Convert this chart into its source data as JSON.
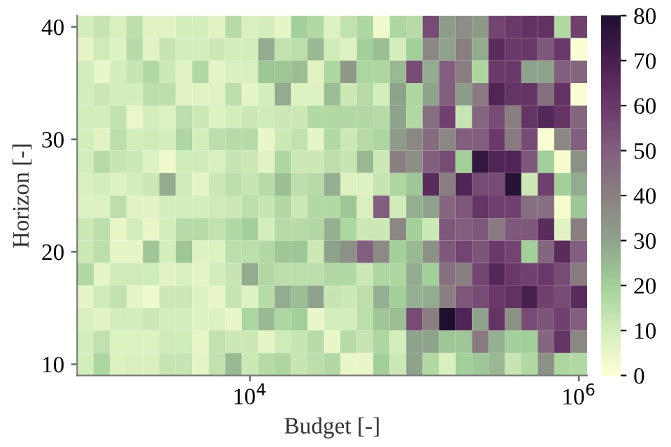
{
  "chart_data": {
    "type": "heatmap",
    "xlabel": "Budget [-]",
    "ylabel": "Horizon [-]",
    "log": "x",
    "x": [
      1000,
      1259,
      1585,
      1995,
      2512,
      3162,
      3981,
      5012,
      6310,
      7943,
      10000,
      12589,
      15849,
      19953,
      25119,
      31623,
      39811,
      50119,
      63096,
      79433,
      100000,
      125893,
      158489,
      199526,
      251189,
      316228,
      398107,
      501187,
      630957,
      794328,
      1000000
    ],
    "y": [
      40,
      38,
      36,
      34,
      32,
      30,
      28,
      26,
      24,
      22,
      20,
      18,
      16,
      14,
      12,
      10
    ],
    "cells": [
      [
        10,
        13,
        9,
        15,
        7,
        7,
        10,
        10,
        7,
        16,
        9,
        10,
        6,
        20,
        17,
        8,
        14,
        18,
        4,
        18,
        16,
        55,
        32,
        36,
        33,
        57,
        60,
        63,
        63,
        17,
        58
      ],
      [
        6,
        11,
        8,
        16,
        7,
        13,
        10,
        10,
        12,
        10,
        10,
        28,
        14,
        15,
        25,
        11,
        8,
        20,
        24,
        10,
        20,
        38,
        30,
        40,
        28,
        65,
        60,
        60,
        52,
        60,
        1
      ],
      [
        10,
        5,
        10,
        13,
        17,
        12,
        7,
        17,
        6,
        9,
        9,
        22,
        22,
        24,
        7,
        18,
        33,
        18,
        18,
        25,
        55,
        28,
        50,
        40,
        18,
        60,
        60,
        30,
        30,
        50,
        48
      ],
      [
        10,
        12,
        10,
        10,
        15,
        15,
        7,
        7,
        7,
        15,
        6,
        10,
        28,
        8,
        8,
        24,
        12,
        16,
        10,
        30,
        18,
        30,
        50,
        32,
        42,
        68,
        62,
        62,
        45,
        63,
        1
      ],
      [
        10,
        10,
        14,
        5,
        10,
        8,
        15,
        12,
        8,
        10,
        12,
        11,
        12,
        12,
        17,
        17,
        17,
        17,
        16,
        30,
        17,
        45,
        58,
        13,
        48,
        55,
        40,
        62,
        67,
        62,
        48
      ],
      [
        10,
        7,
        15,
        10,
        11,
        10,
        18,
        10,
        15,
        16,
        16,
        5,
        12,
        14,
        6,
        17,
        12,
        16,
        18,
        32,
        38,
        46,
        38,
        50,
        50,
        60,
        42,
        55,
        1,
        38,
        50
      ],
      [
        10,
        16,
        13,
        12,
        8,
        4,
        11,
        11,
        9,
        13,
        12,
        7,
        18,
        12,
        12,
        15,
        13,
        25,
        12,
        40,
        36,
        50,
        55,
        20,
        75,
        68,
        68,
        52,
        20,
        2,
        35
      ],
      [
        9,
        10,
        8,
        10,
        12,
        28,
        11,
        6,
        12,
        15,
        13,
        16,
        24,
        15,
        16,
        27,
        8,
        8,
        13,
        18,
        22,
        65,
        40,
        68,
        55,
        55,
        78,
        12,
        58,
        20,
        28
      ],
      [
        8,
        8,
        15,
        7,
        7,
        10,
        10,
        10,
        11,
        12,
        15,
        13,
        17,
        12,
        17,
        17,
        22,
        9,
        50,
        11,
        27,
        30,
        48,
        52,
        62,
        58,
        58,
        45,
        45,
        2,
        22
      ],
      [
        12,
        15,
        5,
        10,
        5,
        10,
        16,
        16,
        14,
        17,
        20,
        10,
        16,
        16,
        17,
        27,
        18,
        12,
        12,
        38,
        20,
        12,
        52,
        50,
        52,
        42,
        52,
        52,
        65,
        7,
        40
      ],
      [
        12,
        15,
        6,
        6,
        22,
        10,
        22,
        8,
        8,
        15,
        15,
        17,
        22,
        22,
        12,
        30,
        35,
        50,
        37,
        20,
        25,
        35,
        52,
        57,
        53,
        60,
        57,
        20,
        48,
        65,
        50
      ],
      [
        17,
        6,
        11,
        11,
        11,
        7,
        9,
        6,
        10,
        13,
        28,
        17,
        15,
        15,
        15,
        17,
        17,
        12,
        18,
        18,
        28,
        20,
        45,
        40,
        57,
        67,
        60,
        58,
        60,
        55,
        42
      ],
      [
        6,
        11,
        14,
        6,
        4,
        12,
        12,
        8,
        5,
        13,
        8,
        16,
        28,
        24,
        30,
        13,
        12,
        15,
        27,
        20,
        27,
        28,
        40,
        52,
        55,
        60,
        63,
        70,
        58,
        55,
        65
      ],
      [
        9,
        7,
        10,
        10,
        12,
        10,
        10,
        8,
        8,
        5,
        18,
        25,
        18,
        20,
        5,
        10,
        10,
        15,
        22,
        24,
        55,
        40,
        80,
        68,
        30,
        62,
        35,
        55,
        53,
        58,
        50
      ],
      [
        10,
        14,
        8,
        8,
        8,
        11,
        11,
        5,
        14,
        12,
        12,
        6,
        11,
        13,
        16,
        5,
        16,
        13,
        18,
        10,
        30,
        30,
        22,
        22,
        42,
        27,
        20,
        20,
        48,
        62,
        38
      ],
      [
        10,
        18,
        8,
        9,
        9,
        13,
        13,
        6,
        14,
        25,
        12,
        16,
        18,
        13,
        15,
        17,
        5,
        5,
        20,
        12,
        30,
        17,
        9,
        20,
        22,
        25,
        13,
        17,
        35,
        18,
        17
      ]
    ],
    "colors": [
      "#ffffd4",
      "#d4eebb",
      "#a3cf9a",
      "#8fa38c",
      "#8a8080",
      "#83607f",
      "#6b3a6a",
      "#4a1f50",
      "#1e0f2e"
    ],
    "xlim": [
      891,
      1122018
    ],
    "xticks": [
      {
        "value": 10000,
        "label": "10$^{4}$"
      },
      {
        "value": 1000000,
        "label": "10$^{6}$"
      }
    ],
    "ylim": [
      9,
      41
    ],
    "yticks": [
      10,
      20,
      30,
      40
    ],
    "clim": [
      0,
      80
    ],
    "cticks": [
      0,
      10,
      20,
      30,
      40,
      50,
      60,
      70,
      80
    ]
  }
}
